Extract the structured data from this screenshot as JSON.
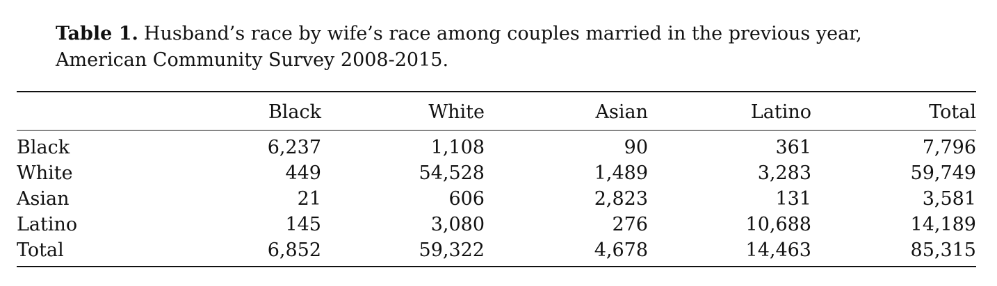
{
  "caption": {
    "label": "Table 1.",
    "text": "Husband’s race by wife’s race among couples married in the previous year, American Community Survey 2008-2015."
  },
  "table": {
    "headers": [
      "",
      "Black",
      "White",
      "Asian",
      "Latino",
      "Total"
    ],
    "rows": [
      [
        "Black",
        "6,237",
        "1,108",
        "90",
        "361",
        "7,796"
      ],
      [
        "White",
        "449",
        "54,528",
        "1,489",
        "3,283",
        "59,749"
      ],
      [
        "Asian",
        "21",
        "606",
        "2,823",
        "131",
        "3,581"
      ],
      [
        "Latino",
        "145",
        "3,080",
        "276",
        "10,688",
        "14,189"
      ],
      [
        "Total",
        "6,852",
        "59,322",
        "4,678",
        "14,463",
        "85,315"
      ]
    ]
  }
}
